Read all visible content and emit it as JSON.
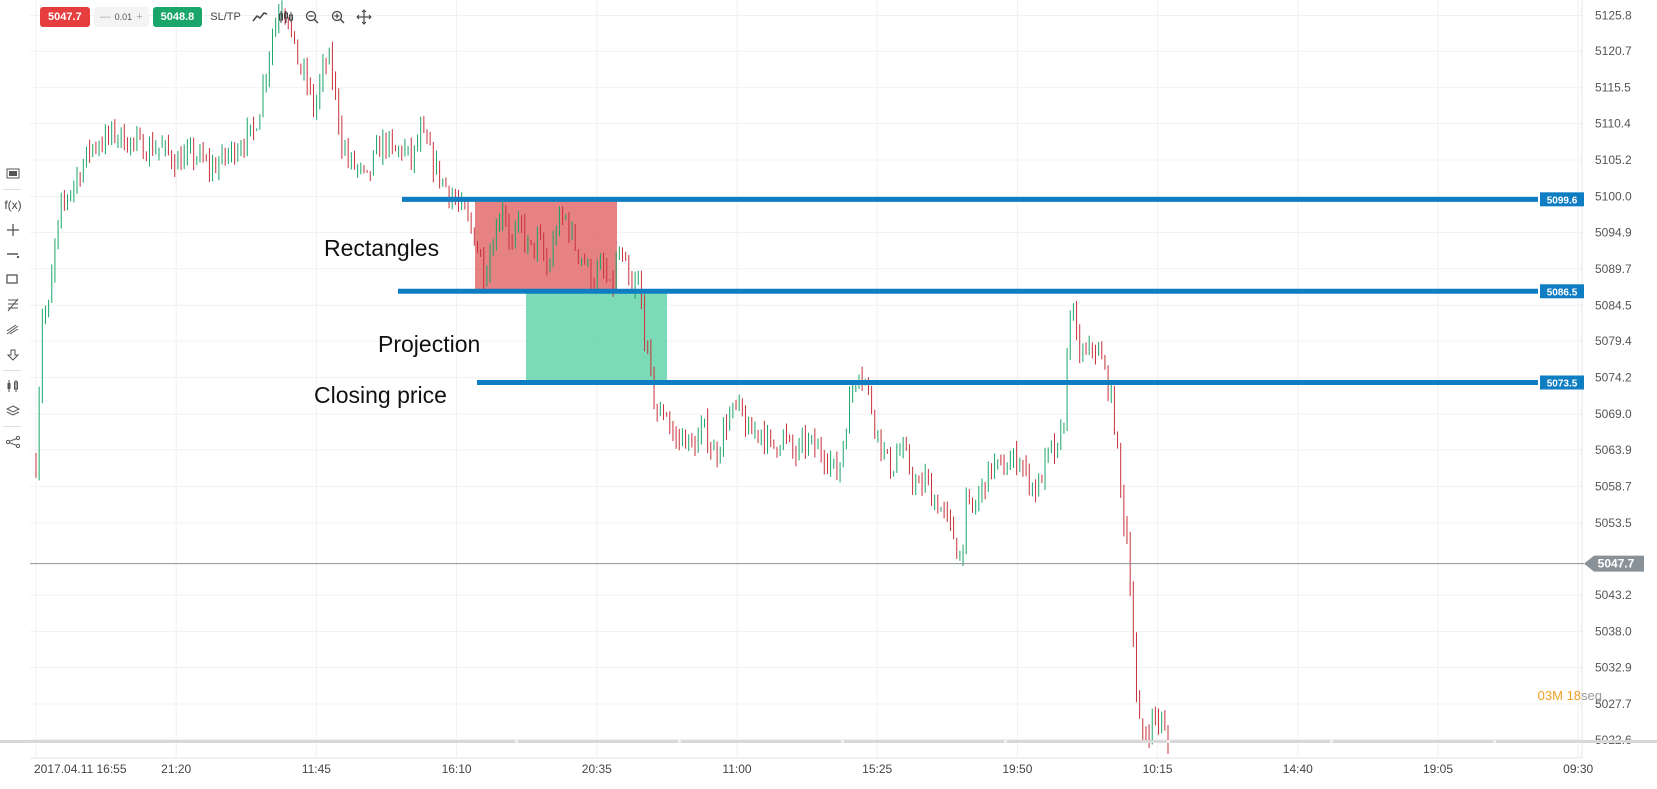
{
  "toolbar": {
    "sell_price": "5047.7",
    "lot_minus": "—",
    "lot_size": "0.01",
    "lot_plus": "+",
    "buy_price": "5048.8",
    "sltp_label": "SL/TP",
    "icons": [
      "chart-type-icon",
      "indicators-icon",
      "zoom-out-icon",
      "zoom-in-icon",
      "crosshair-icon"
    ]
  },
  "left_toolbar": {
    "fx_label": "f(x)",
    "icons": [
      "panel-icon",
      "function-icon",
      "crosshair-plus-icon",
      "line-tool-icon",
      "rectangle-tool-icon",
      "fibonacci-icon",
      "pitchfork-icon",
      "arrow-down-icon",
      "candles-icon",
      "layers-icon",
      "share-icon"
    ]
  },
  "annotations": {
    "rectangles": "Rectangles",
    "projection": "Projection",
    "closing_price": "Closing price"
  },
  "timer": {
    "minutes": "03",
    "minutes_unit": "M",
    "seconds": "18",
    "seconds_unit": "seg"
  },
  "chart_data": {
    "type": "candlestick",
    "ylim": [
      5020.0,
      5128.0
    ],
    "y_ticks": [
      "5125.8",
      "5120.7",
      "5115.5",
      "5110.4",
      "5105.2",
      "5100.0",
      "5094.9",
      "5089.7",
      "5084.5",
      "5079.4",
      "5074.2",
      "5069.0",
      "5063.9",
      "5058.7",
      "5053.5",
      "5043.2",
      "5038.0",
      "5032.9",
      "5027.7",
      "5022.6"
    ],
    "x_ticks": [
      "2017.04.11 16:55",
      "21:20",
      "11:45",
      "16:10",
      "20:35",
      "11:00",
      "15:25",
      "19:50",
      "10:15",
      "14:40",
      "19:05",
      "09:30"
    ],
    "horizontal_lines": [
      {
        "value": 5099.6,
        "label": "5099.6",
        "color": "#0f7dc2"
      },
      {
        "value": 5086.5,
        "label": "5086.5",
        "color": "#0f7dc2"
      },
      {
        "value": 5073.5,
        "label": "5073.5",
        "color": "#0f7dc2"
      }
    ],
    "current_price": {
      "value": 5047.7,
      "label": "5047.7",
      "color": "#8a9299"
    },
    "rectangles": [
      {
        "name": "range",
        "color": "#e06666",
        "y_top": 5099.6,
        "y_bottom": 5086.5
      },
      {
        "name": "projection",
        "color": "#5fd3a7",
        "y_top": 5086.5,
        "y_bottom": 5073.5
      }
    ],
    "up_color": "#1aa56a",
    "down_color": "#c8303a",
    "close_path": [
      [
        0,
        5062
      ],
      [
        6,
        5085
      ],
      [
        10,
        5082
      ],
      [
        16,
        5092
      ],
      [
        22,
        5098
      ],
      [
        30,
        5101
      ],
      [
        40,
        5104
      ],
      [
        48,
        5107
      ],
      [
        60,
        5108
      ],
      [
        70,
        5109
      ],
      [
        80,
        5108
      ],
      [
        95,
        5107
      ],
      [
        110,
        5107
      ],
      [
        125,
        5105
      ],
      [
        140,
        5106
      ],
      [
        155,
        5104
      ],
      [
        170,
        5106
      ],
      [
        182,
        5108
      ],
      [
        192,
        5109
      ],
      [
        198,
        5113
      ],
      [
        204,
        5119
      ],
      [
        210,
        5124
      ],
      [
        216,
        5128
      ],
      [
        222,
        5126
      ],
      [
        228,
        5121
      ],
      [
        234,
        5118
      ],
      [
        240,
        5116
      ],
      [
        246,
        5112
      ],
      [
        252,
        5117
      ],
      [
        258,
        5120
      ],
      [
        264,
        5115
      ],
      [
        270,
        5108
      ],
      [
        276,
        5105
      ],
      [
        284,
        5104
      ],
      [
        292,
        5102
      ],
      [
        300,
        5106
      ],
      [
        308,
        5108
      ],
      [
        316,
        5106
      ],
      [
        324,
        5107
      ],
      [
        332,
        5105
      ],
      [
        340,
        5109
      ],
      [
        348,
        5106
      ],
      [
        356,
        5103
      ],
      [
        364,
        5101
      ],
      [
        372,
        5099
      ],
      [
        380,
        5097
      ],
      [
        388,
        5094
      ],
      [
        396,
        5089
      ],
      [
        404,
        5094
      ],
      [
        412,
        5099
      ],
      [
        420,
        5093
      ],
      [
        428,
        5096
      ],
      [
        436,
        5092
      ],
      [
        444,
        5094
      ],
      [
        452,
        5089
      ],
      [
        460,
        5096
      ],
      [
        468,
        5097
      ],
      [
        476,
        5093
      ],
      [
        484,
        5091
      ],
      [
        492,
        5088
      ],
      [
        500,
        5090
      ],
      [
        508,
        5086
      ],
      [
        514,
        5092
      ],
      [
        520,
        5090
      ],
      [
        526,
        5086
      ],
      [
        532,
        5088
      ],
      [
        538,
        5080
      ],
      [
        544,
        5073
      ],
      [
        550,
        5068
      ],
      [
        556,
        5070
      ],
      [
        564,
        5065
      ],
      [
        572,
        5066
      ],
      [
        580,
        5064
      ],
      [
        590,
        5067
      ],
      [
        600,
        5063
      ],
      [
        610,
        5068
      ],
      [
        620,
        5070
      ],
      [
        630,
        5066
      ],
      [
        640,
        5067
      ],
      [
        650,
        5064
      ],
      [
        660,
        5066
      ],
      [
        670,
        5063
      ],
      [
        680,
        5065
      ],
      [
        690,
        5064
      ],
      [
        700,
        5063
      ],
      [
        708,
        5060
      ],
      [
        714,
        5066
      ],
      [
        720,
        5072
      ],
      [
        726,
        5076
      ],
      [
        732,
        5074
      ],
      [
        738,
        5070
      ],
      [
        744,
        5066
      ],
      [
        750,
        5063
      ],
      [
        756,
        5061
      ],
      [
        762,
        5064
      ],
      [
        768,
        5063
      ],
      [
        774,
        5060
      ],
      [
        780,
        5058
      ],
      [
        786,
        5060
      ],
      [
        792,
        5057
      ],
      [
        798,
        5056
      ],
      [
        804,
        5054
      ],
      [
        810,
        5052
      ],
      [
        816,
        5048
      ],
      [
        822,
        5056
      ],
      [
        828,
        5055
      ],
      [
        834,
        5058
      ],
      [
        840,
        5060
      ],
      [
        846,
        5062
      ],
      [
        852,
        5061
      ],
      [
        860,
        5062
      ],
      [
        868,
        5063
      ],
      [
        876,
        5060
      ],
      [
        884,
        5058
      ],
      [
        890,
        5061
      ],
      [
        896,
        5064
      ],
      [
        902,
        5063
      ],
      [
        908,
        5068
      ],
      [
        914,
        5086
      ],
      [
        918,
        5080
      ],
      [
        922,
        5078
      ],
      [
        928,
        5077
      ],
      [
        934,
        5079
      ],
      [
        940,
        5077
      ],
      [
        946,
        5074
      ],
      [
        952,
        5069
      ],
      [
        956,
        5062
      ],
      [
        960,
        5055
      ],
      [
        964,
        5051
      ],
      [
        968,
        5042
      ],
      [
        972,
        5028
      ],
      [
        976,
        5023
      ],
      [
        982,
        5024
      ],
      [
        988,
        5026
      ],
      [
        994,
        5025
      ],
      [
        1000,
        5022
      ]
    ]
  }
}
